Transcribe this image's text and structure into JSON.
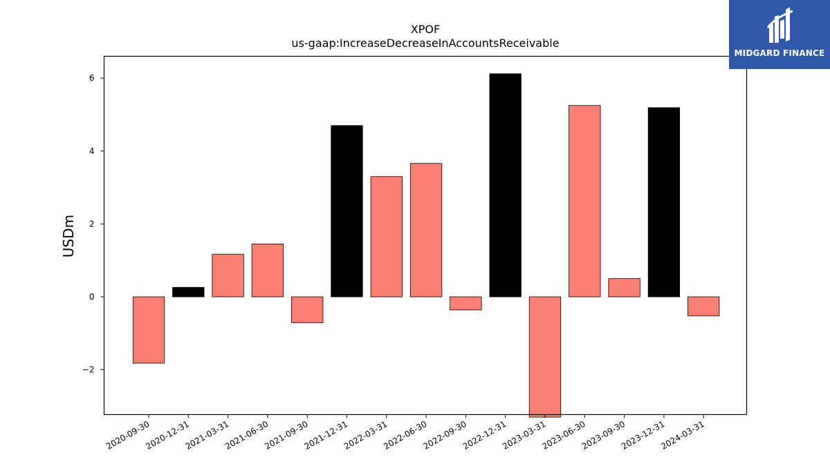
{
  "chart_data": {
    "type": "bar",
    "title": "XPOF",
    "subtitle": "us-gaap:IncreaseDecreaseInAccountsReceivable",
    "ylabel": "USDm",
    "xlabel": "",
    "categories": [
      "2020-09-30",
      "2020-12-31",
      "2021-03-31",
      "2021-06-30",
      "2021-09-30",
      "2021-12-31",
      "2022-03-31",
      "2022-06-30",
      "2022-09-30",
      "2022-12-31",
      "2023-03-31",
      "2023-06-30",
      "2023-09-30",
      "2023-12-31",
      "2024-03-31"
    ],
    "values": [
      -1.82,
      0.26,
      1.17,
      1.45,
      -0.71,
      4.7,
      3.3,
      3.66,
      -0.36,
      6.12,
      -3.3,
      5.25,
      0.5,
      5.19,
      -0.52
    ],
    "ylim": [
      -3.23,
      6.6
    ],
    "yticks": [
      -2,
      0,
      2,
      4,
      6
    ],
    "ytick_labels": [
      "−2",
      "0",
      "2",
      "4",
      "6"
    ],
    "bar_colors": [
      "#fa8072",
      "#000000",
      "#fa8072",
      "#fa8072",
      "#fa8072",
      "#000000",
      "#fa8072",
      "#fa8072",
      "#fa8072",
      "#000000",
      "#fa8072",
      "#fa8072",
      "#fa8072",
      "#000000",
      "#fa8072"
    ],
    "grid": false,
    "legend": "none"
  },
  "logo": {
    "text": "MIDGARD FINANCE",
    "background": "#2e59a8"
  }
}
